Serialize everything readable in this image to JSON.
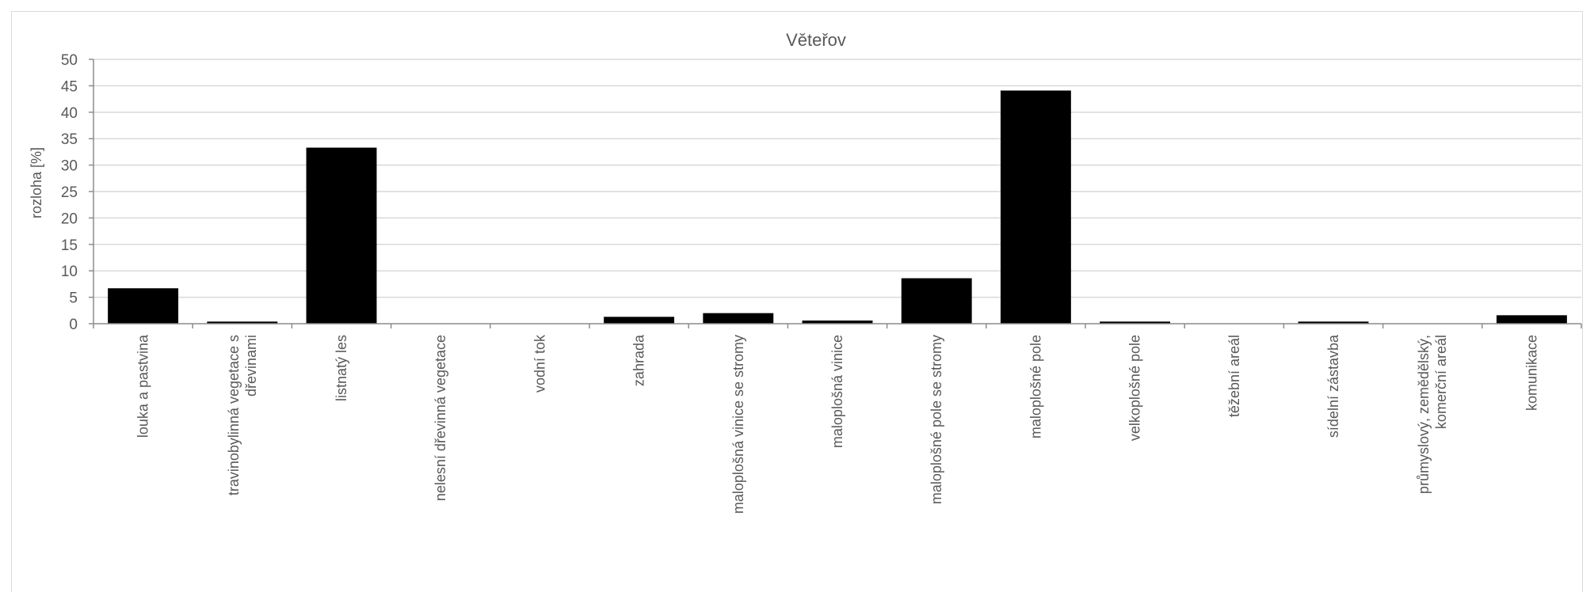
{
  "chart_data": {
    "type": "bar",
    "title": "Věteřov",
    "ylabel": "rozloha [%]",
    "xlabel": "",
    "ylim": [
      0,
      50
    ],
    "yticks": [
      0,
      5,
      10,
      15,
      20,
      25,
      30,
      35,
      40,
      45,
      50
    ],
    "grid": true,
    "legend": "none",
    "bar_color": "#000000",
    "categories": [
      [
        "louka a pastvina"
      ],
      [
        "travinobylinná vegetace s",
        "dřevinami"
      ],
      [
        "listnatý les"
      ],
      [
        "nelesní dřevinná vegetace"
      ],
      [
        "vodní tok"
      ],
      [
        "zahrada"
      ],
      [
        "maloplošná vinice se stromy"
      ],
      [
        "maloplošná vinice"
      ],
      [
        "maloplošné pole se stromy"
      ],
      [
        "maloplošné pole"
      ],
      [
        "velkoplošné pole"
      ],
      [
        "těžební areál"
      ],
      [
        "sídelní zástavba"
      ],
      [
        "průmyslový, zemědělský,",
        "komerční areál"
      ],
      [
        "komunikace"
      ]
    ],
    "values": [
      6.7,
      0.4,
      33.3,
      0,
      0,
      1.3,
      2.0,
      0.6,
      8.6,
      44.1,
      0.4,
      0,
      0.4,
      0,
      1.6
    ]
  }
}
